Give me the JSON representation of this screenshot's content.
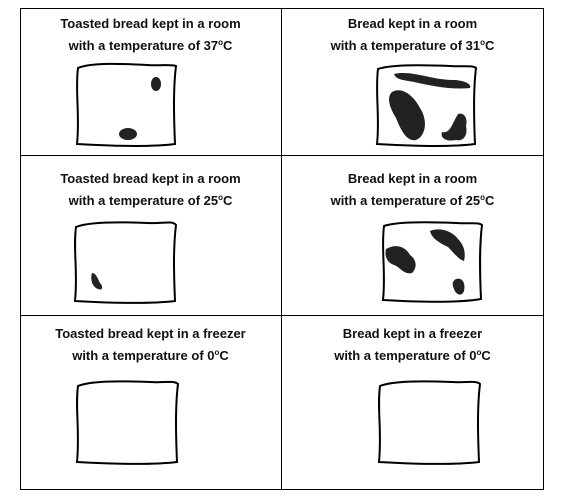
{
  "panels": [
    {
      "line1": "Toasted bread kept in a room",
      "line2_text": "with a temperature of 37",
      "degree": "o",
      "unit": "C"
    },
    {
      "line1": "Bread kept in a room",
      "line2_text": "with a temperature of 31",
      "degree": "o",
      "unit": "C"
    },
    {
      "line1": "Toasted bread kept in a room",
      "line2_text": "with a temperature of 25",
      "degree": "o",
      "unit": "C"
    },
    {
      "line1": "Bread kept in a room",
      "line2_text": "with a temperature of 25",
      "degree": "o",
      "unit": "C"
    },
    {
      "line1": "Toasted bread kept in a freezer",
      "line2_text": "with a temperature of 0",
      "degree": "o",
      "unit": "C"
    },
    {
      "line1": "Bread kept in a freezer",
      "line2_text": "with a temperature of 0",
      "degree": "o",
      "unit": "C"
    }
  ]
}
